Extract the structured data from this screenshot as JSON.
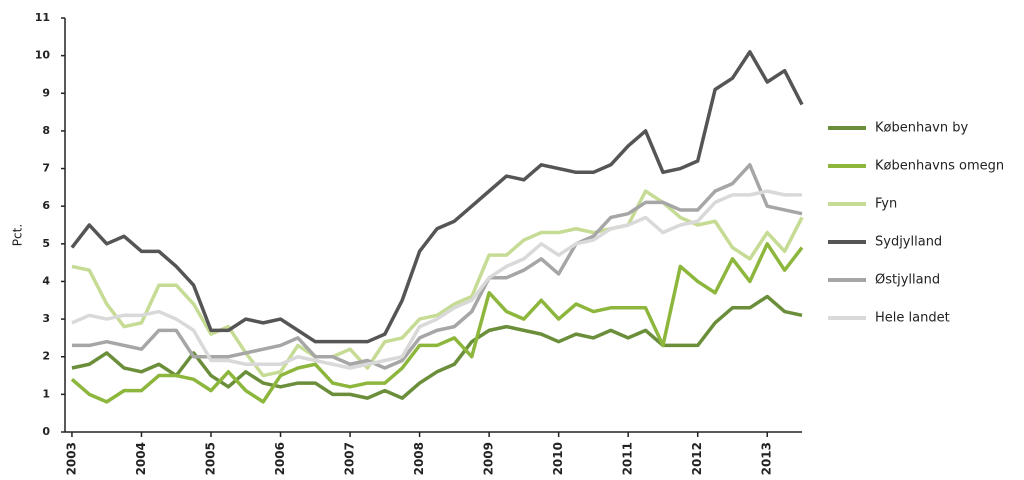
{
  "chart_data": {
    "type": "line",
    "y_label": "Pct.",
    "x": [
      2003,
      2003.25,
      2003.5,
      2003.75,
      2004,
      2004.25,
      2004.5,
      2004.75,
      2005,
      2005.25,
      2005.5,
      2005.75,
      2006,
      2006.25,
      2006.5,
      2006.75,
      2007,
      2007.25,
      2007.5,
      2007.75,
      2008,
      2008.25,
      2008.5,
      2008.75,
      2009,
      2009.25,
      2009.5,
      2009.75,
      2010,
      2010.25,
      2010.5,
      2010.75,
      2011,
      2011.25,
      2011.5,
      2011.75,
      2012,
      2012.25,
      2012.5,
      2012.75,
      2013,
      2013.25,
      2013.5
    ],
    "xlim": [
      2002.9,
      2013.5
    ],
    "xticks": [
      2003,
      2004,
      2005,
      2006,
      2007,
      2008,
      2009,
      2010,
      2011,
      2012,
      2013
    ],
    "ylim": [
      0,
      11
    ],
    "yticks": [
      0,
      1,
      2,
      3,
      4,
      5,
      6,
      7,
      8,
      9,
      10,
      11
    ],
    "grid": false,
    "legend": "right",
    "series": [
      {
        "name": "København by",
        "color": "#6b8e3a",
        "values": [
          1.7,
          1.8,
          2.1,
          1.7,
          1.6,
          1.8,
          1.5,
          2.1,
          1.5,
          1.2,
          1.6,
          1.3,
          1.2,
          1.3,
          1.3,
          1.0,
          1.0,
          0.9,
          1.1,
          0.9,
          1.3,
          1.6,
          1.8,
          2.4,
          2.7,
          2.8,
          2.7,
          2.6,
          2.4,
          2.6,
          2.5,
          2.7,
          2.5,
          2.7,
          2.3,
          2.3,
          2.3,
          2.9,
          3.3,
          3.3,
          3.6,
          3.2,
          3.1
        ]
      },
      {
        "name": "Københavns omegn",
        "color": "#8db63c",
        "values": [
          1.4,
          1.0,
          0.8,
          1.1,
          1.1,
          1.5,
          1.5,
          1.4,
          1.1,
          1.6,
          1.1,
          0.8,
          1.5,
          1.7,
          1.8,
          1.3,
          1.2,
          1.3,
          1.3,
          1.7,
          2.3,
          2.3,
          2.5,
          2.0,
          3.7,
          3.2,
          3.0,
          3.5,
          3.0,
          3.4,
          3.2,
          3.3,
          3.3,
          3.3,
          2.3,
          4.4,
          4.0,
          3.7,
          4.6,
          4.0,
          5.0,
          4.3,
          4.9
        ]
      },
      {
        "name": "Fyn",
        "color": "#c6db94",
        "values": [
          4.4,
          4.3,
          3.4,
          2.8,
          2.9,
          3.9,
          3.9,
          3.4,
          2.6,
          2.8,
          2.1,
          1.5,
          1.6,
          2.3,
          2.0,
          2.0,
          2.2,
          1.7,
          2.4,
          2.5,
          3.0,
          3.1,
          3.4,
          3.6,
          4.7,
          4.7,
          5.1,
          5.3,
          5.3,
          5.4,
          5.3,
          5.4,
          5.5,
          6.4,
          6.1,
          5.7,
          5.5,
          5.6,
          4.9,
          4.6,
          5.3,
          4.8,
          5.7
        ]
      },
      {
        "name": "Sydjylland",
        "color": "#555555",
        "values": [
          4.9,
          5.5,
          5.0,
          5.2,
          4.8,
          4.8,
          4.4,
          3.9,
          2.7,
          2.7,
          3.0,
          2.9,
          3.0,
          2.7,
          2.4,
          2.4,
          2.4,
          2.4,
          2.6,
          3.5,
          4.8,
          5.4,
          5.6,
          6.0,
          6.4,
          6.8,
          6.7,
          7.1,
          7.0,
          6.9,
          6.9,
          7.1,
          7.6,
          8.0,
          6.9,
          7.0,
          7.2,
          9.1,
          9.4,
          10.1,
          9.3,
          9.6,
          8.7
        ]
      },
      {
        "name": "Østjylland",
        "color": "#a6a6a6",
        "values": [
          2.3,
          2.3,
          2.4,
          2.3,
          2.2,
          2.7,
          2.7,
          2.0,
          2.0,
          2.0,
          2.1,
          2.2,
          2.3,
          2.5,
          2.0,
          2.0,
          1.8,
          1.9,
          1.7,
          1.9,
          2.5,
          2.7,
          2.8,
          3.2,
          4.1,
          4.1,
          4.3,
          4.6,
          4.2,
          5.0,
          5.2,
          5.7,
          5.8,
          6.1,
          6.1,
          5.9,
          5.9,
          6.4,
          6.6,
          7.1,
          6.0,
          5.9,
          5.8
        ]
      },
      {
        "name": "Hele landet",
        "color": "#d9d9d9",
        "values": [
          2.9,
          3.1,
          3.0,
          3.1,
          3.1,
          3.2,
          3.0,
          2.7,
          1.9,
          1.9,
          1.8,
          1.8,
          1.8,
          2.0,
          1.9,
          1.8,
          1.7,
          1.8,
          1.9,
          2.0,
          2.8,
          3.0,
          3.3,
          3.5,
          4.1,
          4.4,
          4.6,
          5.0,
          4.7,
          5.0,
          5.1,
          5.4,
          5.5,
          5.7,
          5.3,
          5.5,
          5.6,
          6.1,
          6.3,
          6.3,
          6.4,
          6.3,
          6.3
        ]
      }
    ]
  }
}
